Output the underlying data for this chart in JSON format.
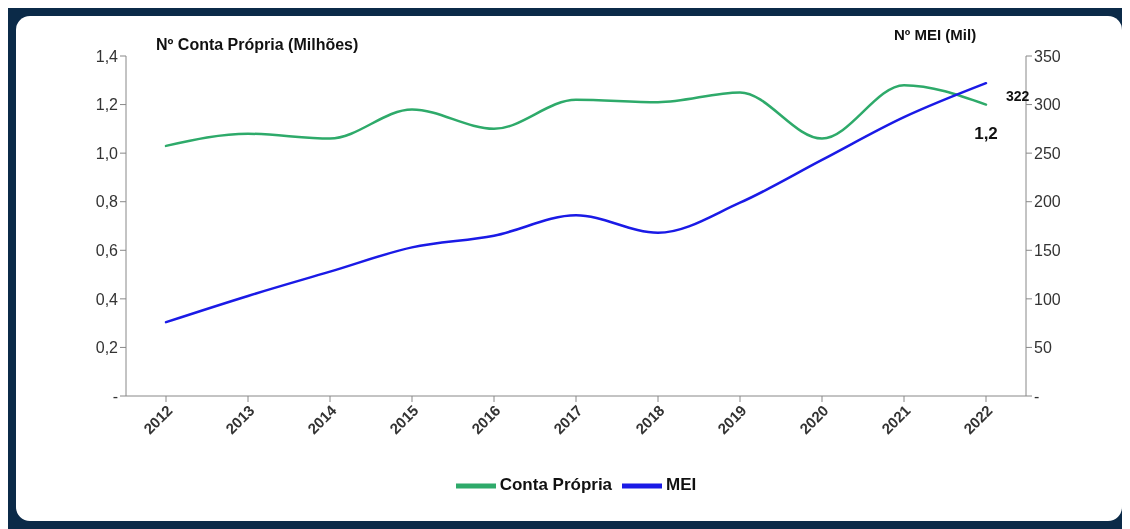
{
  "chart_data": {
    "type": "line",
    "ylabel": "Nº Conta Própria (Milhões)",
    "y2label": "Nº MEI (Mil)",
    "categories": [
      "2012",
      "2013",
      "2014",
      "2015",
      "2016",
      "2017",
      "2018",
      "2019",
      "2020",
      "2021",
      "2022"
    ],
    "series": [
      {
        "name": "Conta Própria",
        "color": "#2eaa6a",
        "values": [
          1.03,
          1.08,
          1.06,
          1.18,
          1.1,
          1.22,
          1.21,
          1.25,
          1.06,
          1.28,
          1.2
        ]
      },
      {
        "name": "MEI",
        "color": "#1a1ae6",
        "axis": "y2",
        "values": [
          76,
          103,
          128,
          153,
          165,
          186,
          168,
          199,
          243,
          287,
          322
        ]
      }
    ],
    "ylim": [
      0,
      1.4
    ],
    "yticks": [
      {
        "value": 0,
        "label": "-"
      },
      {
        "value": 0.2,
        "label": "0,2"
      },
      {
        "value": 0.4,
        "label": "0,4"
      },
      {
        "value": 0.6,
        "label": "0,6"
      },
      {
        "value": 0.8,
        "label": "0,8"
      },
      {
        "value": 1.0,
        "label": "1,0"
      },
      {
        "value": 1.2,
        "label": "1,2"
      },
      {
        "value": 1.4,
        "label": "1,4"
      }
    ],
    "y2lim": [
      0,
      350
    ],
    "y2ticks": [
      {
        "value": 0,
        "label": "-"
      },
      50,
      100,
      150,
      200,
      250,
      300,
      350
    ],
    "annotations": [
      "322",
      {
        "text": "1,2",
        "x": "2022",
        "y": 1.2
      }
    ],
    "grid": false,
    "legend": "bottom",
    "marker": "none",
    "line_style": "solid"
  }
}
